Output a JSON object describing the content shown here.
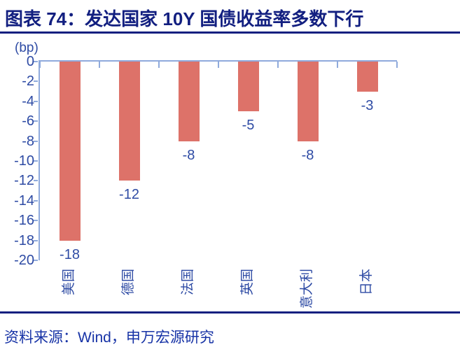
{
  "figure": {
    "title": "图表 74：发达国家 10Y 国债收益率多数下行",
    "source": "资料来源：Wind，申万宏源研究"
  },
  "chart_data": {
    "type": "bar",
    "title": "",
    "xlabel": "",
    "ylabel": "(bp)",
    "categories": [
      "美国",
      "德国",
      "法国",
      "英国",
      "意大利",
      "日本"
    ],
    "values": [
      -18,
      -12,
      -8,
      -5,
      -8,
      -3
    ],
    "data_labels": [
      "-18",
      "-12",
      "-8",
      "-5",
      "-8",
      "-3"
    ],
    "ylim": [
      -20,
      0
    ],
    "yticks": [
      0,
      -2,
      -4,
      -6,
      -8,
      -10,
      -12,
      -14,
      -16,
      -18,
      -20
    ],
    "grid": false,
    "legend": "none",
    "category_label_rotation_deg": -90,
    "bar_color": "#dd7269",
    "axis_line_color": "#8faadc",
    "tick_label_color": "#2e4ba4"
  },
  "colors": {
    "title_navy": "#121f80",
    "rule_navy": "#121f80",
    "footer_blue": "#1733a6",
    "background": "#ffffff"
  }
}
